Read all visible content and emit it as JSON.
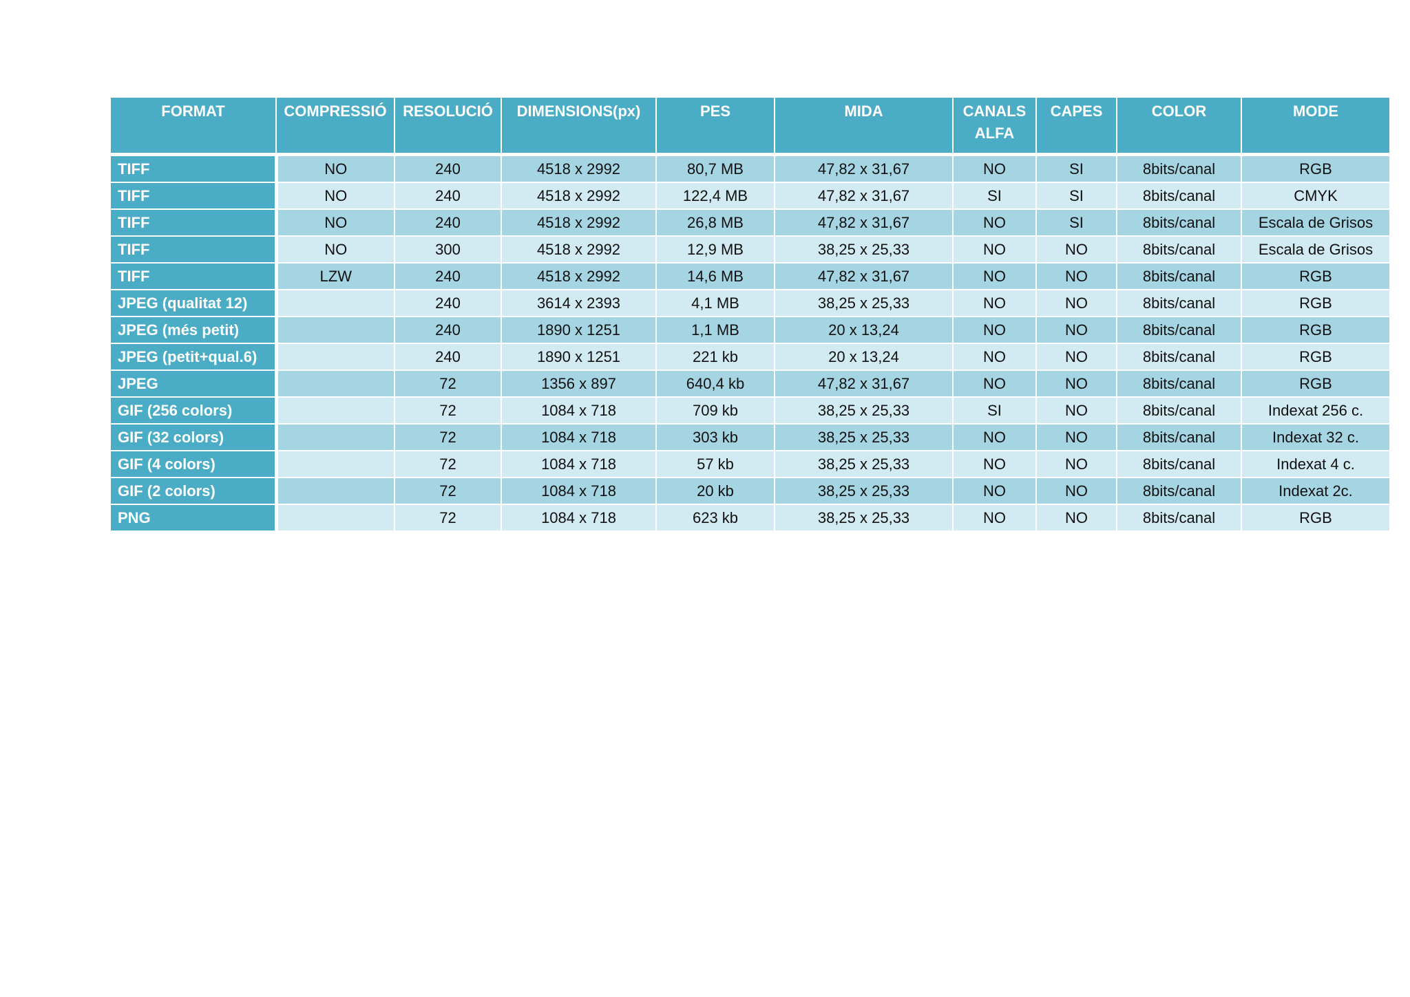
{
  "table": {
    "headers": [
      "FORMAT",
      "COMPRESSIÓ",
      "RESOLUCIÓ",
      "DIMENSIONS(px)",
      "PES",
      "MIDA",
      "CANALS ALFA",
      "CAPES",
      "COLOR",
      "MODE"
    ],
    "rows": [
      [
        "TIFF",
        "NO",
        "240",
        "4518 x 2992",
        "80,7 MB",
        "47,82 x 31,67",
        "NO",
        "SI",
        "8bits/canal",
        "RGB"
      ],
      [
        "TIFF",
        "NO",
        "240",
        "4518 x 2992",
        "122,4 MB",
        "47,82 x 31,67",
        "SI",
        "SI",
        "8bits/canal",
        "CMYK"
      ],
      [
        "TIFF",
        "NO",
        "240",
        "4518 x 2992",
        "26,8 MB",
        "47,82 x 31,67",
        "NO",
        "SI",
        "8bits/canal",
        "Escala de Grisos"
      ],
      [
        "TIFF",
        "NO",
        "300",
        "4518 x 2992",
        "12,9 MB",
        "38,25 x 25,33",
        "NO",
        "NO",
        "8bits/canal",
        "Escala de Grisos"
      ],
      [
        "TIFF",
        "LZW",
        "240",
        "4518 x 2992",
        "14,6 MB",
        "47,82 x 31,67",
        "NO",
        "NO",
        "8bits/canal",
        "RGB"
      ],
      [
        "JPEG (qualitat 12)",
        null,
        "240",
        "3614 x 2393",
        "4,1 MB",
        "38,25 x 25,33",
        "NO",
        "NO",
        "8bits/canal",
        "RGB"
      ],
      [
        "JPEG (més petit)",
        null,
        "240",
        "1890 x 1251",
        "1,1 MB",
        "20 x 13,24",
        "NO",
        "NO",
        "8bits/canal",
        "RGB"
      ],
      [
        "JPEG (petit+qual.6)",
        null,
        "240",
        "1890 x 1251",
        "221 kb",
        "20 x 13,24",
        "NO",
        "NO",
        "8bits/canal",
        "RGB"
      ],
      [
        "JPEG",
        null,
        "72",
        "1356 x 897",
        "640,4 kb",
        "47,82 x 31,67",
        "NO",
        "NO",
        "8bits/canal",
        "RGB"
      ],
      [
        "GIF (256 colors)",
        null,
        "72",
        "1084 x 718",
        "709 kb",
        "38,25 x 25,33",
        "SI",
        "NO",
        "8bits/canal",
        "Indexat 256 c."
      ],
      [
        "GIF (32 colors)",
        null,
        "72",
        "1084 x 718",
        "303 kb",
        "38,25 x 25,33",
        "NO",
        "NO",
        "8bits/canal",
        "Indexat 32 c."
      ],
      [
        "GIF (4 colors)",
        null,
        "72",
        "1084 x 718",
        "57 kb",
        "38,25 x 25,33",
        "NO",
        "NO",
        "8bits/canal",
        "Indexat 4 c."
      ],
      [
        "GIF (2 colors)",
        null,
        "72",
        "1084 x 718",
        "20 kb",
        "38,25 x 25,33",
        "NO",
        "NO",
        "8bits/canal",
        "Indexat 2c."
      ],
      [
        "PNG",
        null,
        "72",
        "1084 x 718",
        "623 kb",
        "38,25 x 25,33",
        "NO",
        "NO",
        "8bits/canal",
        "RGB"
      ]
    ]
  }
}
